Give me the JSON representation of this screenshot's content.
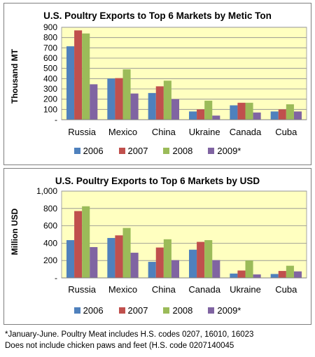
{
  "chart_data": [
    {
      "type": "bar",
      "title": "U.S. Poultry Exports to Top 6 Markets by Metic Ton",
      "ylabel": "Thousand MT",
      "xlabel": "",
      "categories": [
        "Russia",
        "Mexico",
        "China",
        "Ukraine",
        "Canada",
        "Cuba"
      ],
      "ylim": [
        0,
        900
      ],
      "ytick_labels": [
        "-",
        "100",
        "200",
        "300",
        "400",
        "500",
        "600",
        "700",
        "800",
        "900"
      ],
      "grid": true,
      "plot_background": "#ffffc0",
      "legend_position": "bottom",
      "series": [
        {
          "name": "2006",
          "color": "#4f81bd",
          "values": [
            715,
            400,
            260,
            80,
            140,
            80
          ]
        },
        {
          "name": "2007",
          "color": "#c0504d",
          "values": [
            870,
            405,
            325,
            100,
            165,
            100
          ]
        },
        {
          "name": "2008",
          "color": "#9bbb59",
          "values": [
            840,
            490,
            380,
            185,
            165,
            150
          ]
        },
        {
          "name": "2009*",
          "color": "#8064a2",
          "values": [
            345,
            255,
            200,
            40,
            70,
            80
          ]
        }
      ]
    },
    {
      "type": "bar",
      "title": "U.S. Poultry Exports to Top 6 Markets by USD",
      "ylabel": "Million USD",
      "xlabel": "",
      "categories": [
        "Russia",
        "Mexico",
        "China",
        "Canada",
        "Ukraine",
        "Cuba"
      ],
      "ylim": [
        0,
        1000
      ],
      "ytick_labels": [
        "-",
        "200",
        "400",
        "600",
        "800",
        "1,000"
      ],
      "grid": true,
      "plot_background": "#ffffc0",
      "legend_position": "bottom",
      "series": [
        {
          "name": "2006",
          "color": "#4f81bd",
          "values": [
            435,
            460,
            185,
            325,
            50,
            45
          ]
        },
        {
          "name": "2007",
          "color": "#c0504d",
          "values": [
            770,
            490,
            350,
            415,
            85,
            80
          ]
        },
        {
          "name": "2008",
          "color": "#9bbb59",
          "values": [
            825,
            575,
            445,
            435,
            200,
            140
          ]
        },
        {
          "name": "2009*",
          "color": "#8064a2",
          "values": [
            355,
            290,
            205,
            205,
            40,
            75
          ]
        }
      ]
    }
  ],
  "footnote": {
    "line1": "*January-June.  Poultry Meat includes H.S. codes 0207, 16010, 16023",
    "line2": "Does not include chicken paws and feet (H.S. code 0207140045"
  }
}
